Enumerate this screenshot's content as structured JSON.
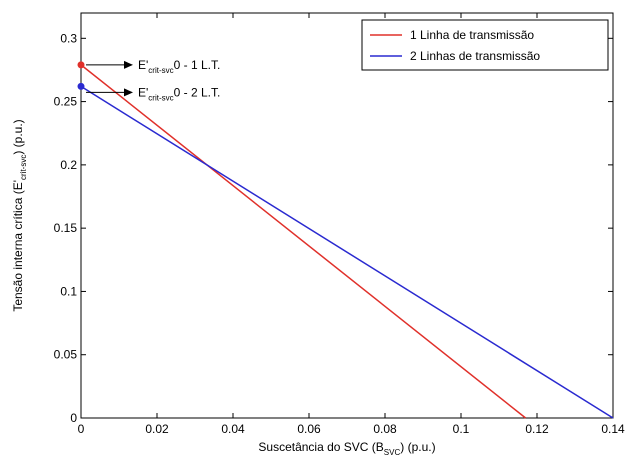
{
  "chart_data": {
    "type": "line",
    "title": "",
    "xlabel": {
      "main": "Suscetância do SVC (B",
      "sub": "SVC",
      "tail": ") (p.u.)"
    },
    "ylabel": {
      "main": "Tensão interna crítica (E'",
      "sub": "crit-svc",
      "tail": ") (p.u.)"
    },
    "xlim": [
      0,
      0.14
    ],
    "ylim": [
      0,
      0.32
    ],
    "xticks": [
      0,
      0.02,
      0.04,
      0.06,
      0.08,
      0.1,
      0.12,
      0.14
    ],
    "xtick_labels": [
      "0",
      "0.02",
      "0.04",
      "0.06",
      "0.08",
      "0.1",
      "0.12",
      "0.14"
    ],
    "yticks": [
      0,
      0.05,
      0.1,
      0.15,
      0.2,
      0.25,
      0.3
    ],
    "ytick_labels": [
      "0",
      "0.05",
      "0.1",
      "0.15",
      "0.2",
      "0.25",
      "0.3"
    ],
    "grid": false,
    "legend_position": "top-right",
    "series": [
      {
        "name": "1 Linha de transmissão",
        "color": "#e0302a",
        "x": [
          0,
          0.117
        ],
        "y": [
          0.279,
          0
        ]
      },
      {
        "name": "2 Linhas de transmissão",
        "color": "#2a2ad0",
        "x": [
          0,
          0.14
        ],
        "y": [
          0.262,
          0
        ]
      }
    ],
    "markers": [
      {
        "x": 0,
        "y": 0.279,
        "color": "#e0302a"
      },
      {
        "x": 0,
        "y": 0.262,
        "color": "#2a2ad0"
      }
    ],
    "annotations": [
      {
        "main": "E'",
        "sub": "crit-svc",
        "tail": "0 - 1 L.T.",
        "x": 0,
        "y": 0.279
      },
      {
        "main": "E'",
        "sub": "crit-svc",
        "tail": "0 - 2 L.T.",
        "x": 0,
        "y": 0.262
      }
    ]
  }
}
